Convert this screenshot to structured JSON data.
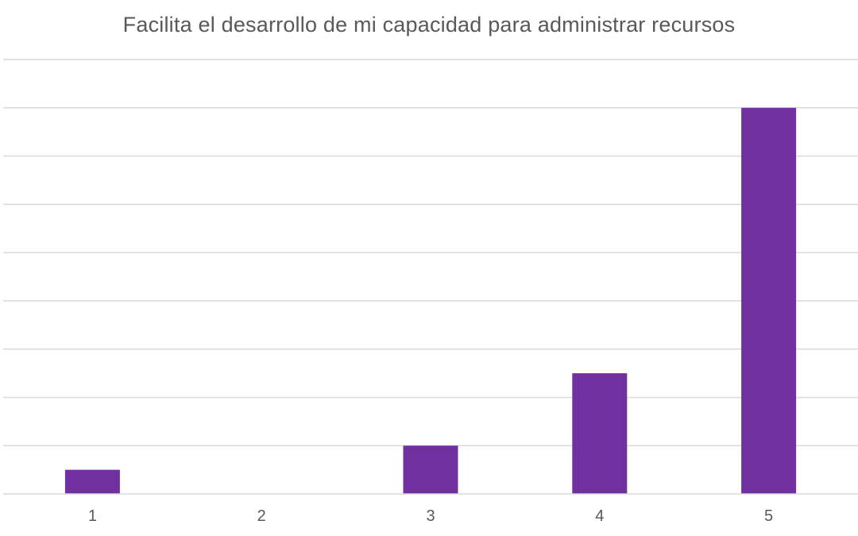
{
  "chart_data": {
    "type": "bar",
    "title": "Facilita el desarrollo de mi capacidad para administrar recursos",
    "categories": [
      "1",
      "2",
      "3",
      "4",
      "5"
    ],
    "values": [
      1,
      0,
      2,
      5,
      16
    ],
    "ylim": [
      0,
      18
    ],
    "grid": true,
    "gridlines": 9,
    "legend": "none",
    "bar_color": "#7030A0",
    "grid_color": "#d9d9d9",
    "text_color": "#595959"
  }
}
